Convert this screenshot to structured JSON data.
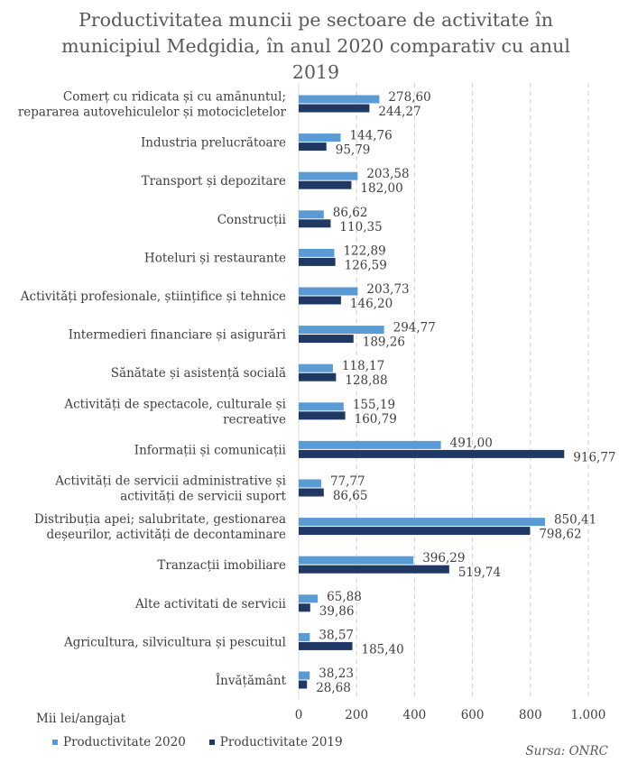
{
  "chart_data": {
    "type": "bar",
    "orientation": "horizontal",
    "title": "Productivitatea muncii pe sectoare de activitate în municipiul Medgidia, în anul 2020 comparativ cu anul 2019",
    "unit_label": "Mii lei/angajat",
    "source": "Sursa: ONRC",
    "categories": [
      [
        "Comerț cu ridicata și cu amănuntul;",
        "repararea autovehiculelor și motocicletelor"
      ],
      [
        "Industria prelucrătoare"
      ],
      [
        "Transport și depozitare"
      ],
      [
        "Construcții"
      ],
      [
        "Hoteluri și restaurante"
      ],
      [
        "Activități profesionale, științifice și tehnice"
      ],
      [
        "Intermedieri financiare și asigurări"
      ],
      [
        "Sănătate și asistență socială"
      ],
      [
        "Activități de spectacole, culturale și",
        "recreative"
      ],
      [
        "Informații și comunicații"
      ],
      [
        "Activități de servicii administrative și",
        "activități de servicii suport"
      ],
      [
        "Distribuția apei; salubritate, gestionarea",
        "deșeurilor, activități de decontaminare"
      ],
      [
        "Tranzacții imobiliare"
      ],
      [
        "Alte activitati de servicii"
      ],
      [
        "Agricultura, silvicultura și pescuitul"
      ],
      [
        "Învățământ"
      ]
    ],
    "series": [
      {
        "name": "Productivitate 2020",
        "color": "#5b9bd5",
        "values": [
          278.6,
          144.76,
          203.58,
          86.62,
          122.89,
          203.73,
          294.77,
          118.17,
          155.19,
          491.0,
          77.77,
          850.41,
          396.29,
          65.88,
          38.57,
          38.23
        ],
        "labels": [
          "278,60",
          "144,76",
          "203,58",
          "86,62",
          "122,89",
          "203,73",
          "294,77",
          "118,17",
          "155,19",
          "491,00",
          "77,77",
          "850,41",
          "396,29",
          "65,88",
          "38,57",
          "38,23"
        ]
      },
      {
        "name": "Productivitate 2019",
        "color": "#1f3864",
        "values": [
          244.27,
          95.79,
          182.0,
          110.35,
          126.59,
          146.2,
          189.26,
          128.88,
          160.79,
          916.77,
          86.65,
          798.62,
          519.74,
          39.86,
          185.4,
          28.68
        ],
        "labels": [
          "244,27",
          "95,79",
          "182,00",
          "110,35",
          "126,59",
          "146,20",
          "189,26",
          "128,88",
          "160,79",
          "916,77",
          "86,65",
          "798,62",
          "519,74",
          "39,86",
          "185,40",
          "28,68"
        ]
      }
    ],
    "xlim": [
      0,
      1000
    ],
    "xticks": [
      0,
      200,
      400,
      600,
      800,
      1000
    ],
    "xtick_labels": [
      "0",
      "200",
      "400",
      "600",
      "800",
      "1.000"
    ],
    "grid": "vertical dashed",
    "legend_position": "bottom-left"
  }
}
